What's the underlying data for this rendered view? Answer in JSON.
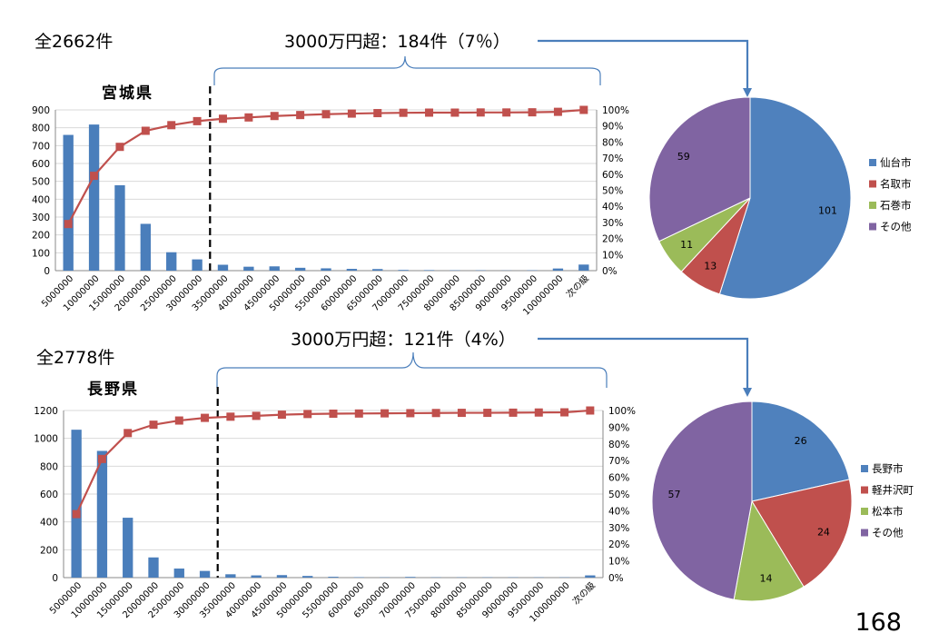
{
  "page_number": "168",
  "chart_data": [
    {
      "type": "bar",
      "title": "宮城県",
      "xlabel": "",
      "ylabel": "",
      "total_label": "全2662件",
      "callout": "3000万円超：184件（7％）",
      "categories": [
        "5000000",
        "10000000",
        "15000000",
        "20000000",
        "25000000",
        "30000000",
        "35000000",
        "40000000",
        "45000000",
        "50000000",
        "55000000",
        "60000000",
        "65000000",
        "70000000",
        "75000000",
        "80000000",
        "85000000",
        "90000000",
        "95000000",
        "100000000",
        "次の級"
      ],
      "series": [
        {
          "axis": "left",
          "type": "bar",
          "color": "#4a7ebb",
          "values": [
            760,
            818,
            478,
            262,
            103,
            63,
            33,
            22,
            24,
            16,
            13,
            10,
            9,
            4,
            3,
            2,
            2,
            1,
            2,
            12,
            34
          ]
        },
        {
          "axis": "right",
          "type": "line",
          "color": "#c0504d",
          "values": [
            0.29,
            0.59,
            0.77,
            0.87,
            0.905,
            0.93,
            0.945,
            0.953,
            0.962,
            0.968,
            0.973,
            0.977,
            0.98,
            0.982,
            0.983,
            0.983,
            0.984,
            0.984,
            0.985,
            0.988,
            1.0
          ]
        }
      ],
      "ylim": [
        0,
        900
      ],
      "yticks": [
        "0",
        "100",
        "200",
        "300",
        "400",
        "500",
        "600",
        "700",
        "800",
        "900"
      ],
      "y2lim": [
        0,
        1
      ],
      "y2ticks": [
        "0%",
        "10%",
        "20%",
        "30%",
        "40%",
        "50%",
        "60%",
        "70%",
        "80%",
        "90%",
        "100%"
      ],
      "threshold_after": "30000000"
    },
    {
      "type": "pie",
      "slices": [
        {
          "label": "仙台市",
          "value": 101,
          "color": "#4f81bd"
        },
        {
          "label": "名取市",
          "value": 13,
          "color": "#c0504d"
        },
        {
          "label": "石巻市",
          "value": 11,
          "color": "#9bbb59"
        },
        {
          "label": "その他",
          "value": 59,
          "color": "#8064a2"
        }
      ],
      "legend": "right"
    },
    {
      "type": "bar",
      "title": "長野県",
      "xlabel": "",
      "ylabel": "",
      "total_label": "全2778件",
      "callout": "3000万円超：121件（4%）",
      "categories": [
        "5000000",
        "10000000",
        "15000000",
        "20000000",
        "25000000",
        "30000000",
        "35000000",
        "40000000",
        "45000000",
        "50000000",
        "55000000",
        "60000000",
        "65000000",
        "70000000",
        "75000000",
        "80000000",
        "85000000",
        "90000000",
        "95000000",
        "100000000",
        "次の級"
      ],
      "series": [
        {
          "axis": "left",
          "type": "bar",
          "color": "#4a7ebb",
          "values": [
            1062,
            910,
            430,
            145,
            65,
            48,
            24,
            16,
            18,
            12,
            6,
            3,
            2,
            5,
            2,
            2,
            2,
            2,
            2,
            2,
            16
          ]
        },
        {
          "axis": "right",
          "type": "line",
          "color": "#c0504d",
          "values": [
            0.38,
            0.71,
            0.865,
            0.915,
            0.94,
            0.956,
            0.963,
            0.968,
            0.975,
            0.979,
            0.981,
            0.982,
            0.983,
            0.984,
            0.985,
            0.986,
            0.986,
            0.987,
            0.988,
            0.989,
            1.0
          ]
        }
      ],
      "ylim": [
        0,
        1200
      ],
      "yticks": [
        "0",
        "200",
        "400",
        "600",
        "800",
        "1000",
        "1200"
      ],
      "y2lim": [
        0,
        1
      ],
      "y2ticks": [
        "0%",
        "10%",
        "20%",
        "30%",
        "40%",
        "50%",
        "60%",
        "70%",
        "80%",
        "90%",
        "100%"
      ],
      "threshold_after": "30000000"
    },
    {
      "type": "pie",
      "slices": [
        {
          "label": "長野市",
          "value": 26,
          "color": "#4f81bd"
        },
        {
          "label": "軽井沢町",
          "value": 24,
          "color": "#c0504d"
        },
        {
          "label": "松本市",
          "value": 14,
          "color": "#9bbb59"
        },
        {
          "label": "その他",
          "value": 57,
          "color": "#8064a2"
        }
      ],
      "legend": "right"
    }
  ]
}
